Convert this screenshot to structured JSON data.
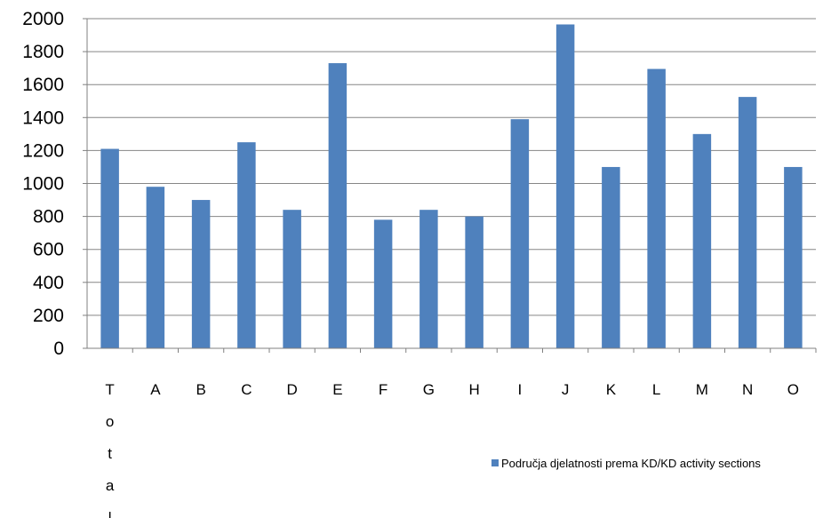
{
  "chart_data": {
    "type": "bar",
    "categories": [
      "Total",
      "A",
      "B",
      "C",
      "D",
      "E",
      "F",
      "G",
      "H",
      "I",
      "J",
      "K",
      "L",
      "M",
      "N",
      "O"
    ],
    "series": [
      {
        "name": "Područja djelatnosti prema KD/KD activity sections",
        "values": [
          1210,
          980,
          900,
          1250,
          840,
          1730,
          780,
          840,
          800,
          1390,
          1965,
          1100,
          1695,
          1300,
          1525,
          1100
        ],
        "color": "#4f81bd"
      }
    ],
    "ylim": [
      0,
      2000
    ],
    "yticks": [
      0,
      200,
      400,
      600,
      800,
      1000,
      1200,
      1400,
      1600,
      1800,
      2000
    ],
    "grid": true,
    "legend": "right"
  }
}
